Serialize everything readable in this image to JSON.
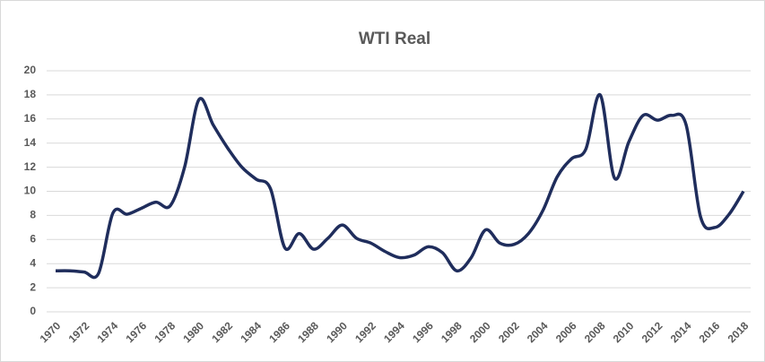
{
  "chart_data": {
    "type": "line",
    "title": "WTI Real",
    "x": [
      1970,
      1971,
      1972,
      1973,
      1974,
      1975,
      1976,
      1977,
      1978,
      1979,
      1980,
      1981,
      1982,
      1983,
      1984,
      1985,
      1986,
      1987,
      1988,
      1989,
      1990,
      1991,
      1992,
      1993,
      1994,
      1995,
      1996,
      1997,
      1998,
      1999,
      2000,
      2001,
      2002,
      2003,
      2004,
      2005,
      2006,
      2007,
      2008,
      2009,
      2010,
      2011,
      2012,
      2013,
      2014,
      2015,
      2016,
      2017,
      2018
    ],
    "series": [
      {
        "name": "WTI Real",
        "color": "#1f2d5c",
        "values": [
          3.4,
          3.4,
          3.3,
          3.2,
          8.2,
          8.1,
          8.6,
          9.1,
          8.8,
          12.0,
          17.6,
          15.5,
          13.6,
          12.0,
          11.0,
          10.2,
          5.3,
          6.5,
          5.2,
          6.1,
          7.2,
          6.1,
          5.7,
          5.0,
          4.5,
          4.7,
          5.4,
          4.9,
          3.4,
          4.5,
          6.8,
          5.7,
          5.6,
          6.5,
          8.4,
          11.2,
          12.7,
          13.5,
          18.0,
          11.1,
          14.1,
          16.3,
          15.9,
          16.3,
          15.5,
          7.9,
          7.0,
          8.1,
          10.0
        ]
      }
    ],
    "xlim": [
      1970,
      2018
    ],
    "xticks": [
      1970,
      1972,
      1974,
      1976,
      1978,
      1980,
      1982,
      1984,
      1986,
      1988,
      1990,
      1992,
      1994,
      1996,
      1998,
      2000,
      2002,
      2004,
      2006,
      2008,
      2010,
      2012,
      2014,
      2016,
      2018
    ],
    "ylim": [
      0,
      20
    ],
    "yticks": [
      0,
      2,
      4,
      6,
      8,
      10,
      12,
      14,
      16,
      18,
      20
    ],
    "grid": true
  }
}
